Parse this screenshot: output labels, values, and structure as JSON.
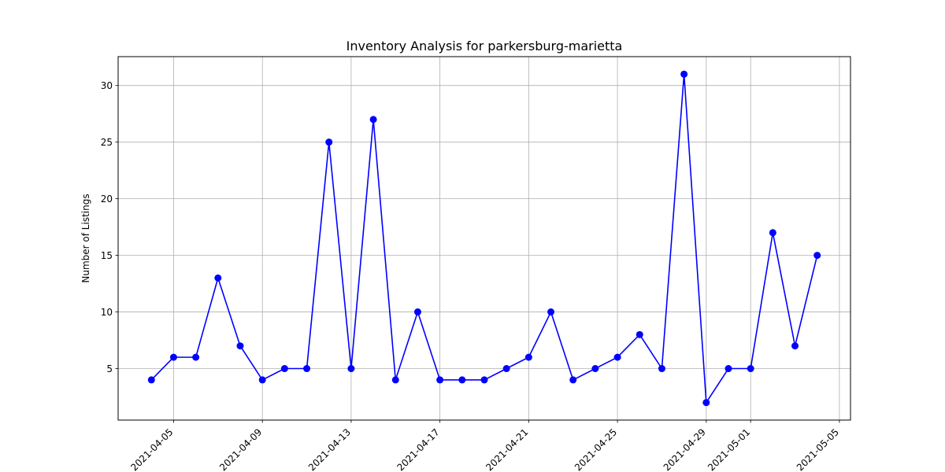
{
  "chart_data": {
    "type": "line",
    "title": "Inventory Analysis for parkersburg-marietta",
    "xlabel": "",
    "ylabel": "Number of Listings",
    "grid": true,
    "color": "#0000ff",
    "marker": "circle",
    "xlim": [
      "2021-04-02.5",
      "2021-05-05.5"
    ],
    "ylim": [
      0.45,
      32.55
    ],
    "x_ticks": [
      "2021-04-05",
      "2021-04-09",
      "2021-04-13",
      "2021-04-17",
      "2021-04-21",
      "2021-04-25",
      "2021-04-29",
      "2021-05-01",
      "2021-05-05"
    ],
    "y_ticks": [
      5,
      10,
      15,
      20,
      25,
      30
    ],
    "series": [
      {
        "name": "Number of Listings",
        "points": [
          {
            "x": "2021-04-04",
            "y": 4
          },
          {
            "x": "2021-04-05",
            "y": 6
          },
          {
            "x": "2021-04-06",
            "y": 6
          },
          {
            "x": "2021-04-07",
            "y": 13
          },
          {
            "x": "2021-04-08",
            "y": 7
          },
          {
            "x": "2021-04-09",
            "y": 4
          },
          {
            "x": "2021-04-10",
            "y": 5
          },
          {
            "x": "2021-04-11",
            "y": 5
          },
          {
            "x": "2021-04-12",
            "y": 25
          },
          {
            "x": "2021-04-13",
            "y": 5
          },
          {
            "x": "2021-04-14",
            "y": 27
          },
          {
            "x": "2021-04-15",
            "y": 4
          },
          {
            "x": "2021-04-16",
            "y": 10
          },
          {
            "x": "2021-04-17",
            "y": 4
          },
          {
            "x": "2021-04-18",
            "y": 4
          },
          {
            "x": "2021-04-19",
            "y": 4
          },
          {
            "x": "2021-04-20",
            "y": 5
          },
          {
            "x": "2021-04-21",
            "y": 6
          },
          {
            "x": "2021-04-22",
            "y": 10
          },
          {
            "x": "2021-04-23",
            "y": 4
          },
          {
            "x": "2021-04-24",
            "y": 5
          },
          {
            "x": "2021-04-25",
            "y": 6
          },
          {
            "x": "2021-04-26",
            "y": 8
          },
          {
            "x": "2021-04-27",
            "y": 5
          },
          {
            "x": "2021-04-28",
            "y": 31
          },
          {
            "x": "2021-04-29",
            "y": 2
          },
          {
            "x": "2021-04-30",
            "y": 5
          },
          {
            "x": "2021-05-01",
            "y": 5
          },
          {
            "x": "2021-05-02",
            "y": 17
          },
          {
            "x": "2021-05-03",
            "y": 7
          },
          {
            "x": "2021-05-04",
            "y": 15
          }
        ]
      }
    ]
  }
}
